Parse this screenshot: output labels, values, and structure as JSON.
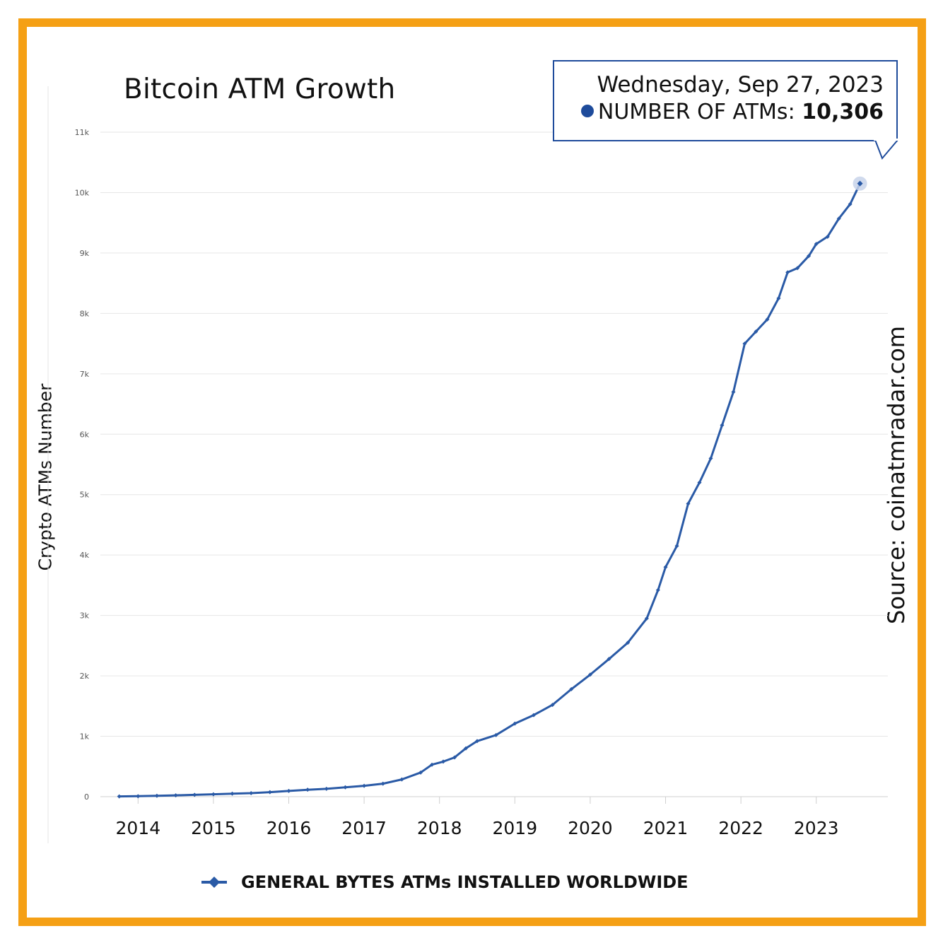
{
  "chart_data": {
    "type": "line",
    "title": "Bitcoin ATM Growth",
    "ylabel": "Crypto ATMs Number",
    "xlabel": "",
    "source_label": "Source: coinatmradar.com",
    "ylim": [
      0,
      11000
    ],
    "y_ticks": [
      "0",
      "1k",
      "2k",
      "3k",
      "4k",
      "5k",
      "6k",
      "7k",
      "8k",
      "9k",
      "10k",
      "11k"
    ],
    "x_ticks": [
      "2014",
      "2015",
      "2016",
      "2017",
      "2018",
      "2019",
      "2020",
      "2021",
      "2022",
      "2023"
    ],
    "grid": true,
    "legend_position": "bottom",
    "series": [
      {
        "name": "GENERAL BYTES ATMs INSTALLED WORLDWIDE",
        "color": "#2a5aa6",
        "points": [
          [
            2013.75,
            5
          ],
          [
            2014.0,
            8
          ],
          [
            2014.25,
            15
          ],
          [
            2014.5,
            22
          ],
          [
            2014.75,
            30
          ],
          [
            2015.0,
            40
          ],
          [
            2015.25,
            50
          ],
          [
            2015.5,
            58
          ],
          [
            2015.75,
            75
          ],
          [
            2016.0,
            95
          ],
          [
            2016.25,
            115
          ],
          [
            2016.5,
            130
          ],
          [
            2016.75,
            155
          ],
          [
            2017.0,
            180
          ],
          [
            2017.25,
            215
          ],
          [
            2017.5,
            285
          ],
          [
            2017.75,
            400
          ],
          [
            2017.9,
            530
          ],
          [
            2018.05,
            580
          ],
          [
            2018.2,
            650
          ],
          [
            2018.35,
            800
          ],
          [
            2018.5,
            920
          ],
          [
            2018.75,
            1020
          ],
          [
            2019.0,
            1210
          ],
          [
            2019.25,
            1350
          ],
          [
            2019.5,
            1520
          ],
          [
            2019.75,
            1780
          ],
          [
            2020.0,
            2020
          ],
          [
            2020.25,
            2280
          ],
          [
            2020.5,
            2550
          ],
          [
            2020.75,
            2950
          ],
          [
            2020.9,
            3420
          ],
          [
            2021.0,
            3800
          ],
          [
            2021.15,
            4150
          ],
          [
            2021.3,
            4850
          ],
          [
            2021.45,
            5200
          ],
          [
            2021.6,
            5600
          ],
          [
            2021.75,
            6150
          ],
          [
            2021.9,
            6700
          ],
          [
            2022.05,
            7500
          ],
          [
            2022.2,
            7700
          ],
          [
            2022.35,
            7900
          ],
          [
            2022.5,
            8250
          ],
          [
            2022.62,
            8680
          ],
          [
            2022.75,
            8750
          ],
          [
            2022.9,
            8950
          ],
          [
            2023.0,
            9150
          ],
          [
            2023.15,
            9270
          ],
          [
            2023.3,
            9570
          ],
          [
            2023.45,
            9810
          ],
          [
            2023.58,
            10150
          ]
        ]
      }
    ],
    "tooltip": {
      "date": "Wednesday, Sep 27, 2023",
      "series_label": "NUMBER OF ATMs",
      "value": "10,306"
    }
  }
}
